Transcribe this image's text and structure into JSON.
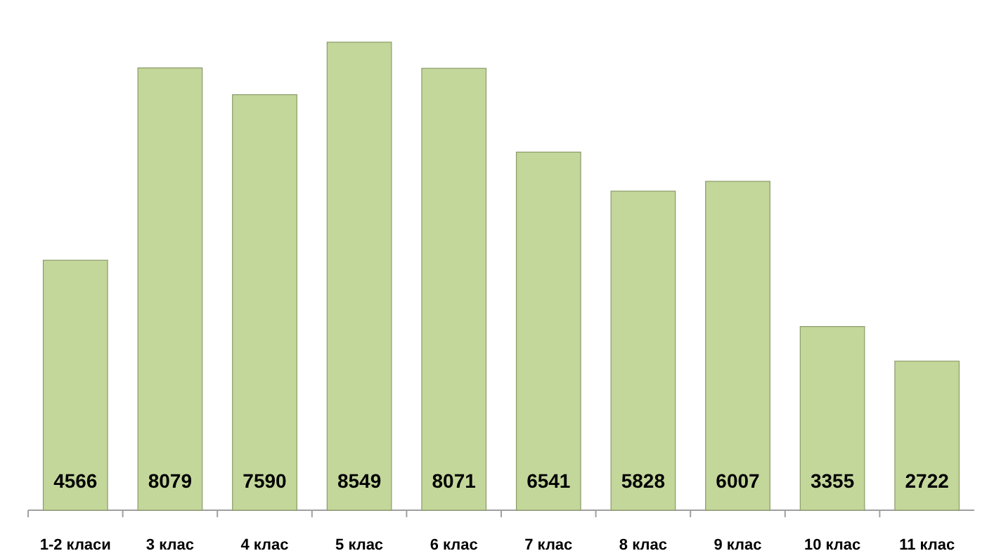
{
  "chart_data": {
    "type": "bar",
    "categories": [
      "1-2 класи",
      "3 клас",
      "4 клас",
      "5 клас",
      "6 клас",
      "7 клас",
      "8 клас",
      "9 клас",
      "10 клас",
      "11 клас"
    ],
    "values": [
      4566,
      8079,
      7590,
      8549,
      8071,
      6541,
      5828,
      6007,
      3355,
      2722
    ],
    "color": "#c4d79b",
    "data_labels": true
  }
}
